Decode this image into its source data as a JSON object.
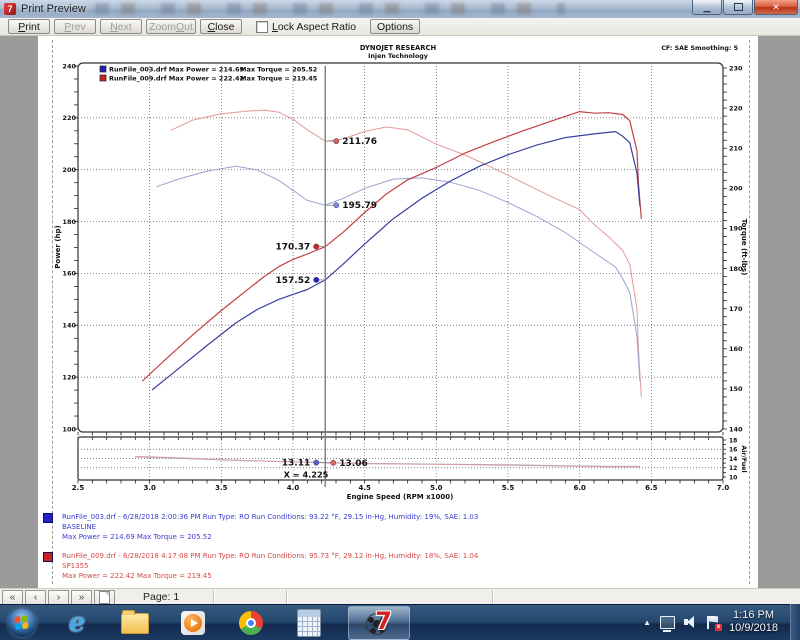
{
  "window": {
    "title": "Print Preview",
    "controls": [
      "minimize",
      "restore",
      "close"
    ]
  },
  "toolbar": {
    "buttons": [
      {
        "label": "Print",
        "underline": 0,
        "enabled": true
      },
      {
        "label": "Prev",
        "underline": 0,
        "enabled": false
      },
      {
        "label": "Next",
        "underline": 0,
        "enabled": false
      },
      {
        "label": "Zoom Out",
        "underline": 5,
        "enabled": false
      },
      {
        "label": "Close",
        "underline": 0,
        "enabled": true
      }
    ],
    "checkbox": {
      "label": "Lock Aspect Ratio",
      "underline": 0,
      "checked": false
    },
    "options_label": "Options"
  },
  "runs": [
    {
      "color": "#3a3ad4",
      "swatch": "#2222cc",
      "line1": "RunFile_003.drf - 6/28/2018 2:00:36 PM  Run Type: RO  Run Conditions: 93.22 °F, 29.15 in-Hg,  Humidity:  19%, SAE: 1.03",
      "line2": "BASELINE",
      "line3": "Max Power = 214.69  Max Torque = 205.52"
    },
    {
      "color": "#d64848",
      "swatch": "#cc2222",
      "line1": "RunFile_009.drf - 6/28/2018 4:17:08 PM  Run Type: RO  Run Conditions: 95.73 °F, 29.12 in-Hg,  Humidity:  18%, SAE: 1.04",
      "line2": "SP1355",
      "line3": "Max Power = 222.42  Max Torque = 219.45"
    }
  ],
  "statusbar": {
    "nav": [
      "«",
      "‹",
      "›",
      "»"
    ],
    "page_label": "Page: 1"
  },
  "taskbar": {
    "clock_time": "1:16 PM",
    "clock_date": "10/9/2018"
  },
  "chart_data": {
    "type": "line",
    "title": "DYNOJET RESEARCH",
    "subtitle": "Injen Technology",
    "corner_note": "CF: SAE  Smoothing: 5",
    "x_axis": {
      "label": "Engine Speed (RPM x1000)",
      "min": 2.5,
      "max": 7.0,
      "tick_labels": [
        "2.5",
        "3.0",
        "3.5",
        "4.0",
        "4.5",
        "5.0",
        "5.5",
        "6.0",
        "6.5",
        "7.0"
      ]
    },
    "power_axis": {
      "label": "Power (hp)",
      "min": 100,
      "max": 240,
      "ticks": [
        240,
        220,
        200,
        180,
        160,
        140,
        120,
        100
      ],
      "gridlines": [
        120,
        140,
        160,
        180,
        200,
        220
      ]
    },
    "torque_axis": {
      "label": "Torque (ft-lbs)",
      "min": 140,
      "max": 230,
      "ticks": [
        230,
        220,
        210,
        200,
        190,
        180,
        170,
        160,
        150,
        140
      ]
    },
    "af_axis": {
      "label": "Air/Fuel",
      "min": 10,
      "max": 18,
      "ticks": [
        18,
        16,
        14,
        12,
        10
      ],
      "gridlines": [
        12,
        14,
        16
      ]
    },
    "legend": [
      {
        "swatch": "#2222bb",
        "file_part": "RunFile_003.drf Max Power = 214.69",
        "torque_part": "Max Torque = 205.52"
      },
      {
        "swatch": "#cc2222",
        "file_part": "RunFile_009.drf Max Power = 222.42",
        "torque_part": "Max Torque = 219.45"
      }
    ],
    "cursor": {
      "x": 4.225,
      "label": "X = 4.225"
    },
    "annotations": [
      {
        "label": "211.76",
        "axis": "torque",
        "value": 211.76,
        "dot_color": "#d96060",
        "side": "right"
      },
      {
        "label": "195.79",
        "axis": "torque",
        "value": 195.79,
        "dot_color": "#7a86e0",
        "side": "right"
      },
      {
        "label": "170.37",
        "axis": "power",
        "value": 170.37,
        "dot_color": "#cc2222",
        "side": "left"
      },
      {
        "label": "157.52",
        "axis": "power",
        "value": 157.52,
        "dot_color": "#2222cc",
        "side": "left"
      },
      {
        "label": "13.11",
        "axis": "af",
        "value": 13.11,
        "dot_color": "#5560d0",
        "side": "left"
      },
      {
        "label": "13.06",
        "axis": "af",
        "value": 13.06,
        "dot_color": "#dd6666",
        "side": "right",
        "dot_dx": 8
      }
    ],
    "series": [
      {
        "id": "torque-red-curve",
        "axis": "torque",
        "color": "#e29a9a",
        "width": 1,
        "points": [
          [
            3.15,
            214.5
          ],
          [
            3.3,
            217
          ],
          [
            3.5,
            218.6
          ],
          [
            3.7,
            219.3
          ],
          [
            3.8,
            219.45
          ],
          [
            3.9,
            219.0
          ],
          [
            4.0,
            217.2
          ],
          [
            4.1,
            214.6
          ],
          [
            4.225,
            211.76
          ],
          [
            4.35,
            212.3
          ],
          [
            4.5,
            214.2
          ],
          [
            4.65,
            215.3
          ],
          [
            4.8,
            214.6
          ],
          [
            5.0,
            211
          ],
          [
            5.2,
            208.3
          ],
          [
            5.4,
            205
          ],
          [
            5.6,
            201.5
          ],
          [
            5.8,
            198
          ],
          [
            6.0,
            194.7
          ],
          [
            6.1,
            191
          ],
          [
            6.2,
            188
          ],
          [
            6.3,
            184.5
          ],
          [
            6.35,
            181
          ],
          [
            6.4,
            170
          ],
          [
            6.41,
            160
          ],
          [
            6.43,
            148
          ]
        ]
      },
      {
        "id": "torque-blue-curve",
        "axis": "torque",
        "color": "#9aa3cf",
        "width": 1,
        "points": [
          [
            3.05,
            200.4
          ],
          [
            3.2,
            202.3
          ],
          [
            3.4,
            204.3
          ],
          [
            3.6,
            205.5
          ],
          [
            3.75,
            204.6
          ],
          [
            3.9,
            202
          ],
          [
            4.0,
            199.5
          ],
          [
            4.1,
            197
          ],
          [
            4.225,
            195.79
          ],
          [
            4.35,
            197.5
          ],
          [
            4.5,
            200
          ],
          [
            4.7,
            202.3
          ],
          [
            4.9,
            202.6
          ],
          [
            5.1,
            201.5
          ],
          [
            5.3,
            199.5
          ],
          [
            5.5,
            196.5
          ],
          [
            5.7,
            193
          ],
          [
            5.9,
            189
          ],
          [
            6.1,
            184
          ],
          [
            6.25,
            180.4
          ],
          [
            6.3,
            177.5
          ],
          [
            6.35,
            174
          ],
          [
            6.4,
            163
          ],
          [
            6.42,
            152
          ]
        ]
      },
      {
        "id": "power-red-curve",
        "axis": "power",
        "color": "#c04040",
        "width": 1.2,
        "points": [
          [
            2.95,
            118.5
          ],
          [
            3.1,
            126.3
          ],
          [
            3.3,
            136.3
          ],
          [
            3.5,
            145.7
          ],
          [
            3.7,
            154.5
          ],
          [
            3.8,
            158.8
          ],
          [
            3.9,
            162.6
          ],
          [
            4.0,
            165.4
          ],
          [
            4.1,
            167.5
          ],
          [
            4.225,
            170.3
          ],
          [
            4.35,
            175.9
          ],
          [
            4.5,
            183.5
          ],
          [
            4.65,
            190.6
          ],
          [
            4.8,
            196.1
          ],
          [
            5.0,
            200.9
          ],
          [
            5.2,
            206.4
          ],
          [
            5.4,
            210.8
          ],
          [
            5.6,
            214.9
          ],
          [
            5.8,
            218.7
          ],
          [
            6.0,
            222.4
          ],
          [
            6.1,
            221.8
          ],
          [
            6.2,
            222.0
          ],
          [
            6.3,
            221.3
          ],
          [
            6.35,
            218.9
          ],
          [
            6.4,
            207.2
          ],
          [
            6.41,
            195
          ],
          [
            6.43,
            181.2
          ]
        ]
      },
      {
        "id": "power-blue-curve",
        "axis": "power",
        "color": "#3a3fa0",
        "width": 1.2,
        "points": [
          [
            3.02,
            115.2
          ],
          [
            3.2,
            123.2
          ],
          [
            3.4,
            132.2
          ],
          [
            3.6,
            140.9
          ],
          [
            3.75,
            146.1
          ],
          [
            3.9,
            150.0
          ],
          [
            4.0,
            151.9
          ],
          [
            4.1,
            153.8
          ],
          [
            4.225,
            157.5
          ],
          [
            4.35,
            163.6
          ],
          [
            4.5,
            171.4
          ],
          [
            4.7,
            181.1
          ],
          [
            4.9,
            189.0
          ],
          [
            5.1,
            195.7
          ],
          [
            5.3,
            201.3
          ],
          [
            5.5,
            205.8
          ],
          [
            5.7,
            209.5
          ],
          [
            5.9,
            212.4
          ],
          [
            6.1,
            213.8
          ],
          [
            6.25,
            214.7
          ],
          [
            6.3,
            212.9
          ],
          [
            6.35,
            210.4
          ],
          [
            6.4,
            198.6
          ],
          [
            6.42,
            186.1
          ]
        ]
      },
      {
        "id": "af-blue-curve",
        "axis": "af",
        "color": "#9aa3cf",
        "width": 1,
        "points": [
          [
            2.9,
            14.35
          ],
          [
            3.2,
            14.05
          ],
          [
            3.6,
            13.6
          ],
          [
            4.0,
            13.3
          ],
          [
            4.225,
            13.11
          ],
          [
            4.5,
            12.95
          ],
          [
            5.0,
            12.8
          ],
          [
            5.5,
            12.65
          ],
          [
            5.9,
            12.45
          ],
          [
            6.2,
            12.3
          ],
          [
            6.42,
            12.3
          ]
        ]
      },
      {
        "id": "af-red-curve",
        "axis": "af",
        "color": "#dfa0a0",
        "width": 1,
        "points": [
          [
            2.9,
            14.45
          ],
          [
            3.2,
            14.15
          ],
          [
            3.6,
            13.65
          ],
          [
            4.0,
            13.25
          ],
          [
            4.225,
            13.06
          ],
          [
            4.5,
            12.88
          ],
          [
            5.0,
            12.72
          ],
          [
            5.5,
            12.55
          ],
          [
            5.9,
            12.35
          ],
          [
            6.2,
            12.2
          ],
          [
            6.42,
            12.2
          ]
        ]
      }
    ]
  }
}
